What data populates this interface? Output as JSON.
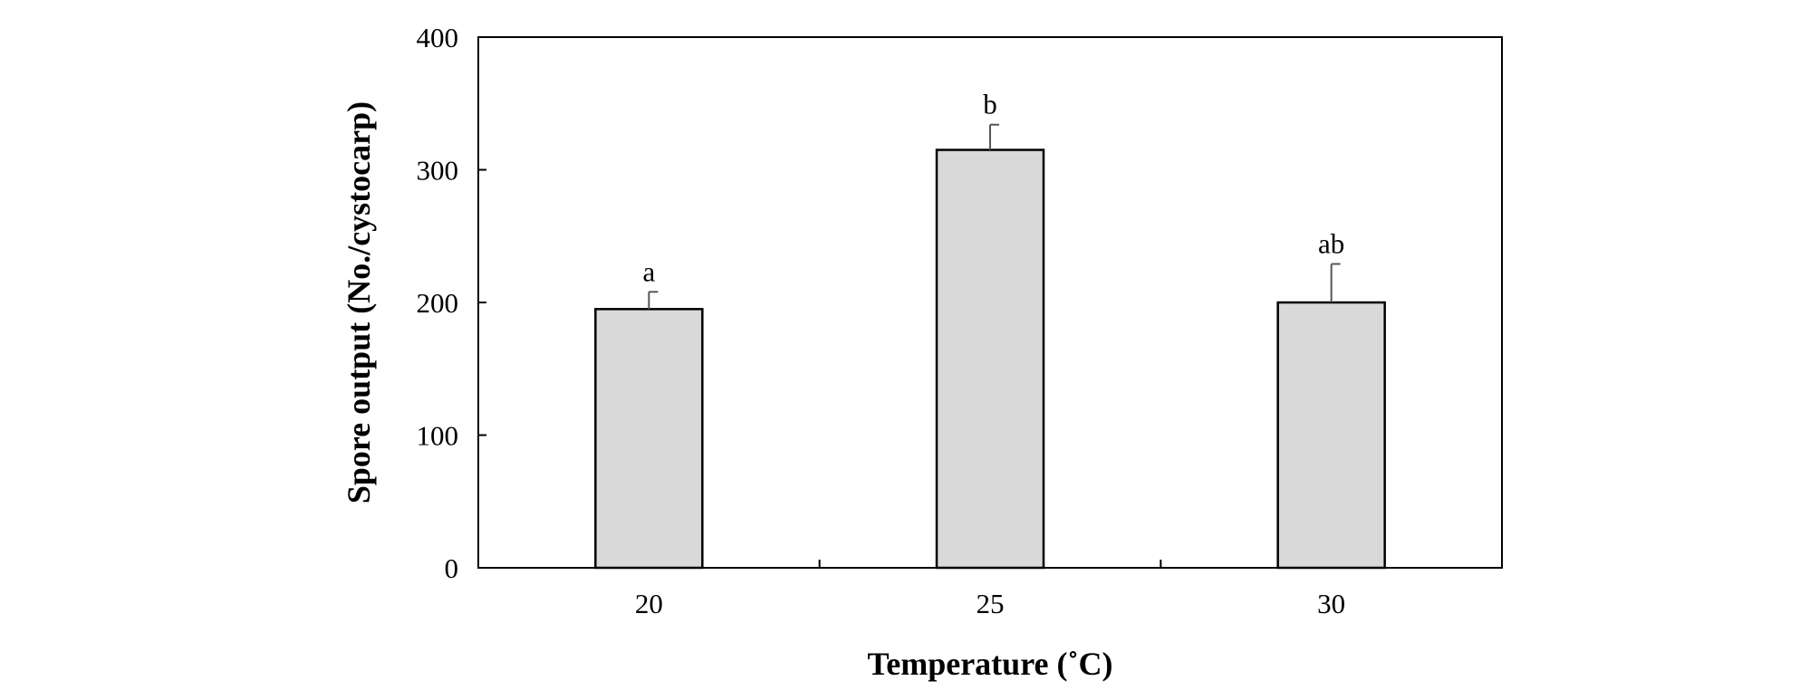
{
  "chart_data": {
    "type": "bar",
    "title": "",
    "xlabel": "Temperature (˚C)",
    "ylabel": "Spore output (No./cystocarp)",
    "categories": [
      "20",
      "25",
      "30"
    ],
    "values": [
      195,
      315,
      200
    ],
    "errors": [
      13,
      19,
      29
    ],
    "significance_labels": [
      "a",
      "b",
      "ab"
    ],
    "ylim": [
      0,
      400
    ],
    "yticks": [
      0,
      100,
      200,
      300,
      400
    ],
    "ytick_labels": [
      "0",
      "100",
      "200",
      "300",
      "400"
    ],
    "grid": false,
    "legend": "none",
    "bar_color": "#d9d9d9"
  }
}
